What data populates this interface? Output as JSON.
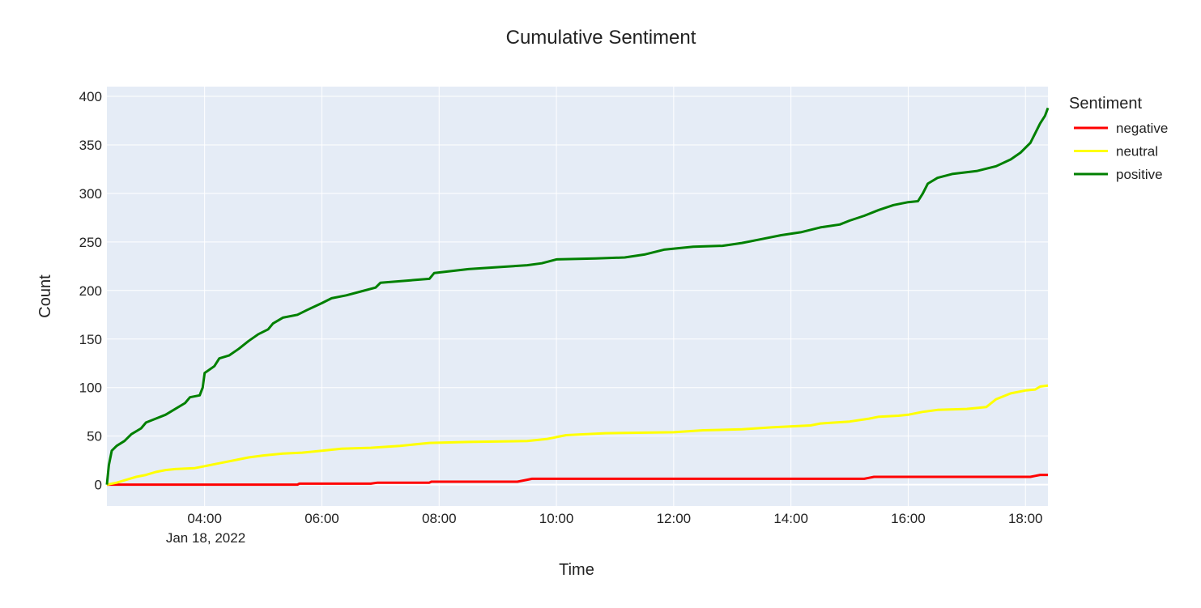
{
  "chart_data": {
    "type": "line",
    "title": "Cumulative Sentiment",
    "xlabel": "Time",
    "ylabel": "Count",
    "date_label": "Jan 18, 2022",
    "x_ticks": [
      "04:00",
      "06:00",
      "08:00",
      "10:00",
      "12:00",
      "14:00",
      "16:00",
      "18:00"
    ],
    "y_ticks": [
      0,
      50,
      100,
      150,
      200,
      250,
      300,
      350,
      400
    ],
    "xlim": [
      "2022-01-18 02:20",
      "2022-01-18 18:23"
    ],
    "ylim": [
      -22,
      410
    ],
    "grid": true,
    "plot_background": "#e5ecf6",
    "legend": {
      "title": "Sentiment",
      "placement": "right"
    },
    "series": [
      {
        "name": "negative",
        "color": "#ff0000",
        "points": [
          [
            "02:20",
            0
          ],
          [
            "05:35",
            0
          ],
          [
            "05:37",
            1
          ],
          [
            "06:50",
            1
          ],
          [
            "06:57",
            2
          ],
          [
            "07:50",
            2
          ],
          [
            "07:52",
            3
          ],
          [
            "09:20",
            3
          ],
          [
            "09:30",
            5
          ],
          [
            "09:35",
            6
          ],
          [
            "15:15",
            6
          ],
          [
            "15:20",
            7
          ],
          [
            "15:25",
            8
          ],
          [
            "18:05",
            8
          ],
          [
            "18:10",
            9
          ],
          [
            "18:15",
            10
          ],
          [
            "18:23",
            10
          ]
        ]
      },
      {
        "name": "neutral",
        "color": "#ffff00",
        "points": [
          [
            "02:20",
            0
          ],
          [
            "02:30",
            2
          ],
          [
            "02:40",
            5
          ],
          [
            "02:50",
            8
          ],
          [
            "03:00",
            10
          ],
          [
            "03:10",
            13
          ],
          [
            "03:20",
            15
          ],
          [
            "03:30",
            16
          ],
          [
            "03:50",
            17
          ],
          [
            "04:00",
            19
          ],
          [
            "04:15",
            22
          ],
          [
            "04:30",
            25
          ],
          [
            "04:45",
            28
          ],
          [
            "05:00",
            30
          ],
          [
            "05:20",
            32
          ],
          [
            "05:40",
            33
          ],
          [
            "06:00",
            35
          ],
          [
            "06:20",
            37
          ],
          [
            "06:50",
            38
          ],
          [
            "07:20",
            40
          ],
          [
            "07:50",
            43
          ],
          [
            "08:30",
            44
          ],
          [
            "09:30",
            45
          ],
          [
            "09:50",
            47
          ],
          [
            "10:00",
            49
          ],
          [
            "10:10",
            51
          ],
          [
            "10:50",
            53
          ],
          [
            "12:00",
            54
          ],
          [
            "12:30",
            56
          ],
          [
            "13:10",
            57
          ],
          [
            "13:40",
            59
          ],
          [
            "14:20",
            61
          ],
          [
            "14:30",
            63
          ],
          [
            "15:00",
            65
          ],
          [
            "15:20",
            68
          ],
          [
            "15:30",
            70
          ],
          [
            "15:50",
            71
          ],
          [
            "16:00",
            72
          ],
          [
            "16:15",
            75
          ],
          [
            "16:30",
            77
          ],
          [
            "17:00",
            78
          ],
          [
            "17:20",
            80
          ],
          [
            "17:30",
            88
          ],
          [
            "17:45",
            94
          ],
          [
            "18:00",
            97
          ],
          [
            "18:10",
            98
          ],
          [
            "18:15",
            101
          ],
          [
            "18:23",
            102
          ]
        ]
      },
      {
        "name": "positive",
        "color": "#008000",
        "points": [
          [
            "02:20",
            0
          ],
          [
            "02:22",
            20
          ],
          [
            "02:25",
            35
          ],
          [
            "02:30",
            40
          ],
          [
            "02:38",
            45
          ],
          [
            "02:45",
            52
          ],
          [
            "02:55",
            58
          ],
          [
            "03:00",
            64
          ],
          [
            "03:10",
            68
          ],
          [
            "03:20",
            72
          ],
          [
            "03:30",
            78
          ],
          [
            "03:40",
            84
          ],
          [
            "03:45",
            90
          ],
          [
            "03:55",
            92
          ],
          [
            "03:58",
            100
          ],
          [
            "04:00",
            115
          ],
          [
            "04:10",
            122
          ],
          [
            "04:15",
            130
          ],
          [
            "04:25",
            133
          ],
          [
            "04:35",
            140
          ],
          [
            "04:45",
            148
          ],
          [
            "04:55",
            155
          ],
          [
            "05:05",
            160
          ],
          [
            "05:10",
            166
          ],
          [
            "05:20",
            172
          ],
          [
            "05:35",
            175
          ],
          [
            "05:45",
            180
          ],
          [
            "06:00",
            187
          ],
          [
            "06:10",
            192
          ],
          [
            "06:25",
            195
          ],
          [
            "06:40",
            199
          ],
          [
            "06:55",
            203
          ],
          [
            "07:00",
            208
          ],
          [
            "07:50",
            212
          ],
          [
            "07:55",
            218
          ],
          [
            "08:30",
            222
          ],
          [
            "09:00",
            224
          ],
          [
            "09:30",
            226
          ],
          [
            "09:45",
            228
          ],
          [
            "10:00",
            232
          ],
          [
            "10:40",
            233
          ],
          [
            "11:10",
            234
          ],
          [
            "11:30",
            237
          ],
          [
            "11:50",
            242
          ],
          [
            "12:20",
            245
          ],
          [
            "12:50",
            246
          ],
          [
            "13:10",
            249
          ],
          [
            "13:30",
            253
          ],
          [
            "13:50",
            257
          ],
          [
            "14:10",
            260
          ],
          [
            "14:30",
            265
          ],
          [
            "14:50",
            268
          ],
          [
            "15:00",
            272
          ],
          [
            "15:15",
            277
          ],
          [
            "15:30",
            283
          ],
          [
            "15:45",
            288
          ],
          [
            "16:00",
            291
          ],
          [
            "16:10",
            292
          ],
          [
            "16:15",
            300
          ],
          [
            "16:20",
            310
          ],
          [
            "16:30",
            316
          ],
          [
            "16:45",
            320
          ],
          [
            "17:10",
            323
          ],
          [
            "17:30",
            328
          ],
          [
            "17:45",
            335
          ],
          [
            "17:55",
            342
          ],
          [
            "18:05",
            352
          ],
          [
            "18:10",
            362
          ],
          [
            "18:15",
            372
          ],
          [
            "18:20",
            380
          ],
          [
            "18:23",
            388
          ]
        ]
      }
    ]
  }
}
